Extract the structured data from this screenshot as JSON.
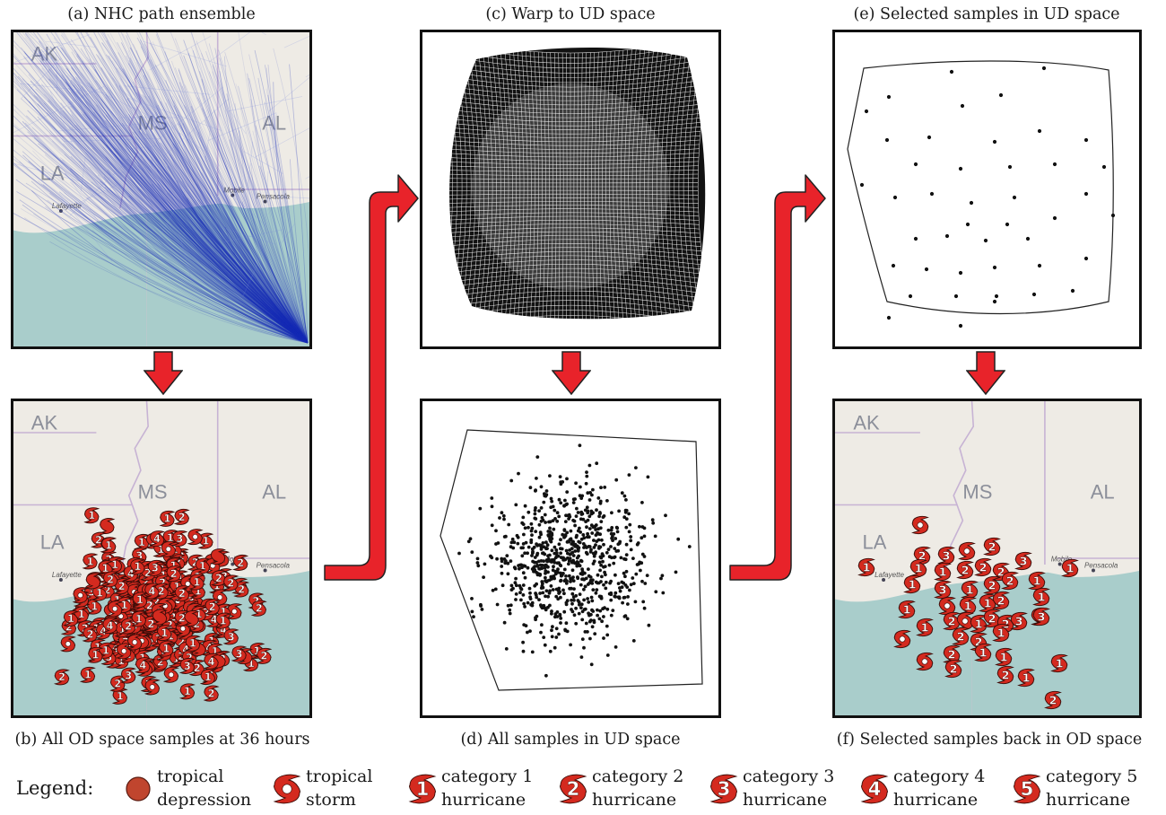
{
  "panels": {
    "a": {
      "caption": "(a) NHC path ensemble"
    },
    "b": {
      "caption": "(b) All OD space samples at 36 hours"
    },
    "c": {
      "caption": "(c) Warp to UD space"
    },
    "d": {
      "caption": "(d) All samples in UD space"
    },
    "e": {
      "caption": "(e) Selected samples in UD space"
    },
    "f": {
      "caption": "(f) Selected samples back in OD space"
    }
  },
  "map": {
    "state_labels": [
      "AK",
      "MS",
      "AL",
      "LA"
    ],
    "city_labels": [
      "Lafayette",
      "Mobile",
      "Pensacola"
    ],
    "colors": {
      "land": "#eeebe5",
      "water": "#a9cdcb",
      "border": "#c7b3d4",
      "tracks": "#1a2fb8",
      "storm": "#d42a1f"
    }
  },
  "legend": {
    "title": "Legend:",
    "items": [
      {
        "line1": "tropical",
        "line2": "depression",
        "icon": "tropical-depression-icon"
      },
      {
        "line1": "tropical",
        "line2": "storm",
        "icon": "tropical-storm-icon",
        "glyph": ""
      },
      {
        "line1": "category 1",
        "line2": "hurricane",
        "icon": "category-1-hurricane-icon",
        "glyph": "1"
      },
      {
        "line1": "category 2",
        "line2": "hurricane",
        "icon": "category-2-hurricane-icon",
        "glyph": "2"
      },
      {
        "line1": "category 3",
        "line2": "hurricane",
        "icon": "category-3-hurricane-icon",
        "glyph": "3"
      },
      {
        "line1": "category 4",
        "line2": "hurricane",
        "icon": "category-4-hurricane-icon",
        "glyph": "4"
      },
      {
        "line1": "category 5",
        "line2": "hurricane",
        "icon": "category-5-hurricane-icon",
        "glyph": "5"
      }
    ]
  },
  "arrow_color": "#e8232a"
}
